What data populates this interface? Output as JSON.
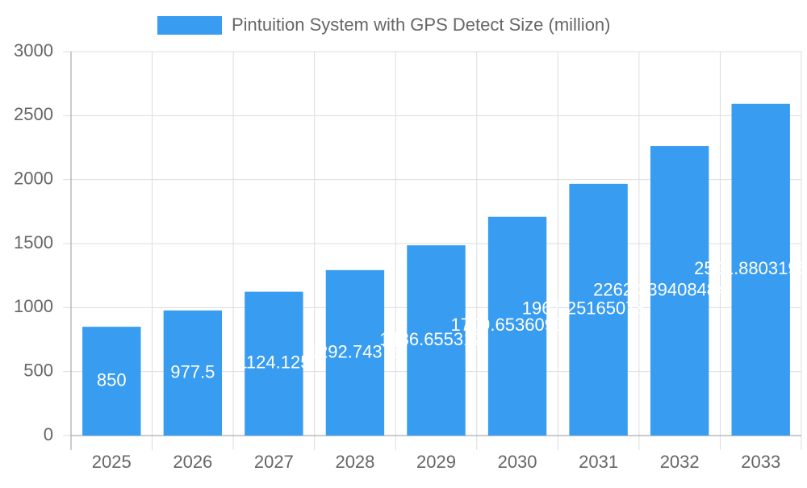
{
  "chart_data": {
    "type": "bar",
    "legend": "Pintuition System with GPS Detect Size (million)",
    "categories": [
      "2025",
      "2026",
      "2027",
      "2028",
      "2029",
      "2030",
      "2031",
      "2032",
      "2033"
    ],
    "values": [
      850,
      977.5,
      1124.125,
      1292.74375,
      1486.6553125,
      1709.653609375,
      1967.25165078125,
      2262.3394084843985,
      2591.880319663
    ],
    "color": "#389cf0",
    "ylim": [
      0,
      3000
    ],
    "yticks": [
      0,
      500,
      1000,
      1500,
      2000,
      2500,
      3000
    ],
    "grid": true
  }
}
